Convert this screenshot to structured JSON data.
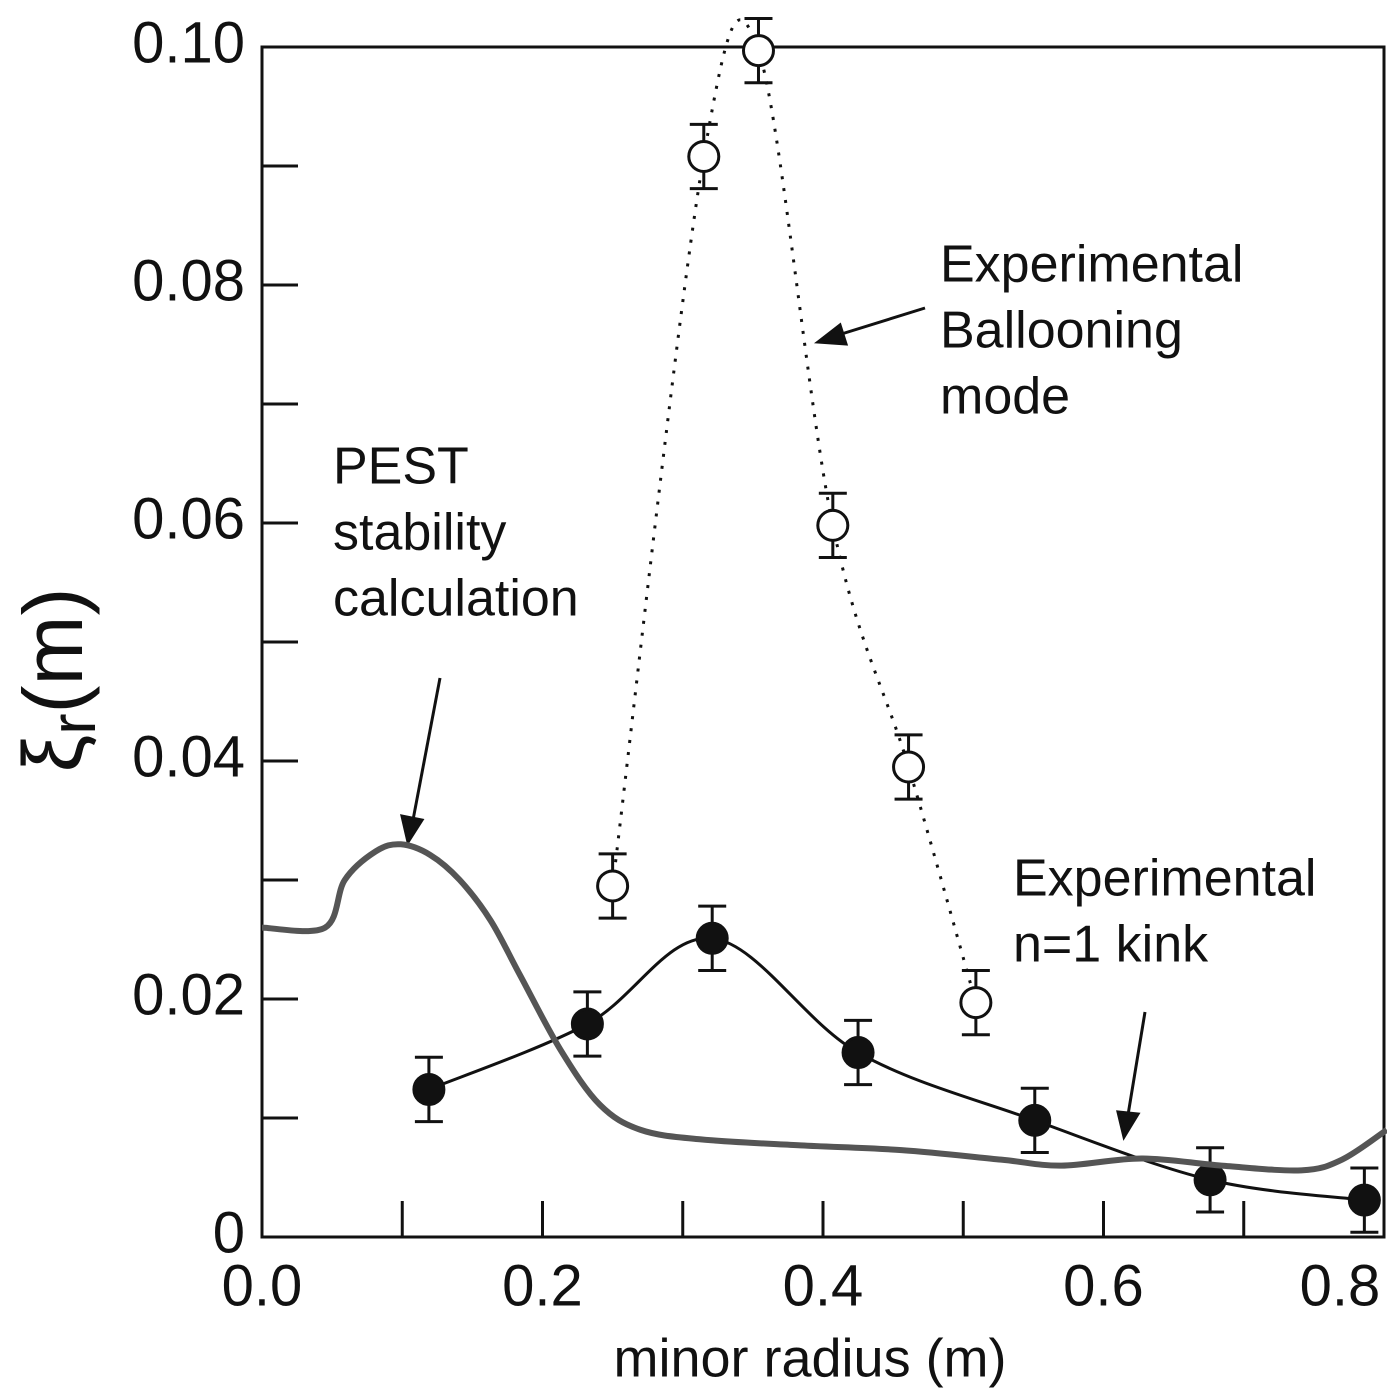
{
  "chart_data": {
    "type": "line",
    "xlabel": "minor radius (m)",
    "ylabel": {
      "symbol": "ξ",
      "subscript": "r",
      "unit": "(m)"
    },
    "xlim": [
      0,
      0.8
    ],
    "ylim": [
      0,
      0.1
    ],
    "xticks": [
      {
        "value": 0,
        "label": "0.0"
      },
      0.2,
      0.4,
      0.6,
      0.8
    ],
    "xminorticks": [
      0.1,
      0.3,
      0.5,
      0.7
    ],
    "yticks": [
      0,
      0.02,
      0.04,
      0.06,
      0.08,
      {
        "value": 0.1,
        "label": "0.10"
      }
    ],
    "yminorticks": [
      0.01,
      0.03,
      0.05,
      0.07,
      0.09
    ],
    "series": [
      {
        "marker": "open",
        "linestyle": "dotted",
        "color": "#111111",
        "x": [
          0.25,
          0.315,
          0.354,
          0.407,
          0.461,
          0.509
        ],
        "values": [
          0.0295,
          0.0908,
          0.0997,
          0.0598,
          0.0395,
          0.0197
        ],
        "errors": [
          0.0027,
          0.0027,
          0.0027,
          0.0027,
          0.0027,
          0.0027
        ]
      },
      {
        "marker": "filled",
        "linestyle": "solid",
        "color": "#111111",
        "x": [
          0.119,
          0.232,
          0.321,
          0.425,
          0.551,
          0.676,
          0.786
        ],
        "values": [
          0.0124,
          0.0179,
          0.0251,
          0.0155,
          0.0098,
          0.0048,
          0.0031
        ],
        "errors": [
          0.0027,
          0.0027,
          0.0027,
          0.0027,
          0.0027,
          0.0027,
          0.0027
        ]
      },
      {
        "marker": "none",
        "linestyle": "thick",
        "color": "#555555",
        "x": [
          0,
          0.045,
          0.059,
          0.081,
          0.099,
          0.12,
          0.141,
          0.163,
          0.184,
          0.213,
          0.241,
          0.27,
          0.313,
          0.384,
          0.456,
          0.527,
          0.57,
          0.627,
          0.684,
          0.741,
          0.77,
          0.802
        ],
        "values": [
          0.026,
          0.026,
          0.03,
          0.0324,
          0.033,
          0.0321,
          0.03,
          0.0266,
          0.022,
          0.0157,
          0.0111,
          0.009,
          0.0082,
          0.0077,
          0.0073,
          0.0065,
          0.006,
          0.0066,
          0.006,
          0.0056,
          0.0065,
          0.009
        ]
      }
    ],
    "annotations": [
      {
        "lines": [
          "Experimental",
          "Ballooning",
          "mode"
        ]
      },
      {
        "lines": [
          "PEST",
          "stability",
          "calculation"
        ]
      },
      {
        "lines": [
          "Experimental",
          "n=1 kink"
        ]
      }
    ]
  }
}
